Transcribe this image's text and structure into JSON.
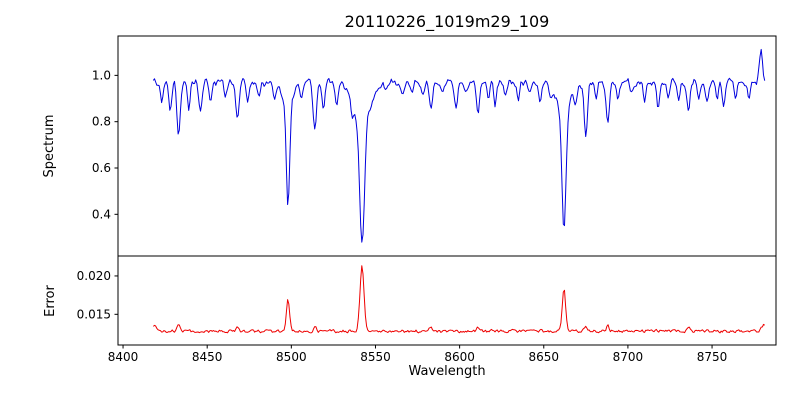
{
  "chart_data": {
    "type": "line",
    "title": "20110226_1019m29_109",
    "xlabel": "Wavelength",
    "xlim": [
      8397,
      8788
    ],
    "x_ticks": [
      8400,
      8450,
      8500,
      8550,
      8600,
      8650,
      8700,
      8750
    ],
    "x_start": 8418,
    "x_end": 8782,
    "x_step": 0.7,
    "grid": false,
    "legend": "none",
    "panels": [
      {
        "name": "spectrum",
        "ylabel": "Spectrum",
        "line_color": "#0000dd",
        "ylim": [
          0.22,
          1.17
        ],
        "y_ticks": [
          {
            "value": 0.4,
            "label": "0.4"
          },
          {
            "value": 0.6,
            "label": "0.6"
          },
          {
            "value": 0.8,
            "label": "0.8"
          },
          {
            "value": 1.0,
            "label": "1.0"
          }
        ],
        "continuum": 0.97,
        "noise_amplitude": 0.012,
        "absorption_lines": [
          {
            "center": 8498,
            "min_flux": 0.44,
            "width": 1.0,
            "wing_width": 3.2,
            "wing_fraction": 0.18
          },
          {
            "center": 8542,
            "min_flux": 0.27,
            "width": 1.4,
            "wing_width": 5.0,
            "wing_fraction": 0.25
          },
          {
            "center": 8662,
            "min_flux": 0.33,
            "width": 1.2,
            "wing_width": 4.0,
            "wing_fraction": 0.2
          },
          {
            "center": 8423,
            "min_flux": 0.88,
            "width": 0.8
          },
          {
            "center": 8428,
            "min_flux": 0.85,
            "width": 0.8
          },
          {
            "center": 8433,
            "min_flux": 0.74,
            "width": 1.0
          },
          {
            "center": 8439,
            "min_flux": 0.86,
            "width": 0.8
          },
          {
            "center": 8446,
            "min_flux": 0.84,
            "width": 0.9
          },
          {
            "center": 8452,
            "min_flux": 0.88,
            "width": 0.8
          },
          {
            "center": 8461,
            "min_flux": 0.9,
            "width": 0.8
          },
          {
            "center": 8468,
            "min_flux": 0.82,
            "width": 1.0
          },
          {
            "center": 8474,
            "min_flux": 0.88,
            "width": 0.8
          },
          {
            "center": 8481,
            "min_flux": 0.9,
            "width": 0.8
          },
          {
            "center": 8490,
            "min_flux": 0.91,
            "width": 0.8
          },
          {
            "center": 8506,
            "min_flux": 0.92,
            "width": 0.8
          },
          {
            "center": 8514,
            "min_flux": 0.76,
            "width": 1.0
          },
          {
            "center": 8519,
            "min_flux": 0.85,
            "width": 0.8
          },
          {
            "center": 8527,
            "min_flux": 0.88,
            "width": 0.8
          },
          {
            "center": 8536,
            "min_flux": 0.91,
            "width": 0.8
          },
          {
            "center": 8556,
            "min_flux": 0.93,
            "width": 0.8
          },
          {
            "center": 8566,
            "min_flux": 0.92,
            "width": 0.8
          },
          {
            "center": 8572,
            "min_flux": 0.93,
            "width": 0.8
          },
          {
            "center": 8578,
            "min_flux": 0.92,
            "width": 0.8
          },
          {
            "center": 8583,
            "min_flux": 0.86,
            "width": 0.9
          },
          {
            "center": 8590,
            "min_flux": 0.93,
            "width": 0.8
          },
          {
            "center": 8598,
            "min_flux": 0.86,
            "width": 0.9
          },
          {
            "center": 8604,
            "min_flux": 0.92,
            "width": 0.8
          },
          {
            "center": 8611,
            "min_flux": 0.84,
            "width": 0.9
          },
          {
            "center": 8617,
            "min_flux": 0.9,
            "width": 0.8
          },
          {
            "center": 8621,
            "min_flux": 0.87,
            "width": 0.8
          },
          {
            "center": 8627,
            "min_flux": 0.91,
            "width": 0.8
          },
          {
            "center": 8635,
            "min_flux": 0.9,
            "width": 0.8
          },
          {
            "center": 8642,
            "min_flux": 0.92,
            "width": 0.8
          },
          {
            "center": 8648,
            "min_flux": 0.89,
            "width": 0.8
          },
          {
            "center": 8654,
            "min_flux": 0.93,
            "width": 0.8
          },
          {
            "center": 8669,
            "min_flux": 0.9,
            "width": 0.8
          },
          {
            "center": 8675,
            "min_flux": 0.74,
            "width": 1.0
          },
          {
            "center": 8681,
            "min_flux": 0.89,
            "width": 0.8
          },
          {
            "center": 8688,
            "min_flux": 0.79,
            "width": 1.0
          },
          {
            "center": 8694,
            "min_flux": 0.91,
            "width": 0.8
          },
          {
            "center": 8702,
            "min_flux": 0.92,
            "width": 0.8
          },
          {
            "center": 8710,
            "min_flux": 0.89,
            "width": 0.8
          },
          {
            "center": 8718,
            "min_flux": 0.87,
            "width": 0.8
          },
          {
            "center": 8724,
            "min_flux": 0.91,
            "width": 0.8
          },
          {
            "center": 8730,
            "min_flux": 0.89,
            "width": 0.8
          },
          {
            "center": 8736,
            "min_flux": 0.85,
            "width": 0.9
          },
          {
            "center": 8742,
            "min_flux": 0.91,
            "width": 0.8
          },
          {
            "center": 8747,
            "min_flux": 0.88,
            "width": 0.8
          },
          {
            "center": 8753,
            "min_flux": 0.91,
            "width": 0.8
          },
          {
            "center": 8757,
            "min_flux": 0.87,
            "width": 0.8
          },
          {
            "center": 8764,
            "min_flux": 0.9,
            "width": 0.8
          },
          {
            "center": 8772,
            "min_flux": 0.89,
            "width": 0.8
          }
        ],
        "emission_spikes": [
          {
            "center": 8779,
            "peak_flux": 1.1,
            "width": 1.0
          }
        ]
      },
      {
        "name": "error",
        "ylabel": "Error",
        "line_color": "#ee0000",
        "ylim": [
          0.011,
          0.0226
        ],
        "y_ticks": [
          {
            "value": 0.015,
            "label": "0.015"
          },
          {
            "value": 0.02,
            "label": "0.020"
          }
        ],
        "baseline": 0.0128,
        "noise_amplitude": 0.00025,
        "spikes": [
          {
            "center": 8498,
            "peak": 0.017,
            "width": 0.9
          },
          {
            "center": 8542,
            "peak": 0.0214,
            "width": 1.2
          },
          {
            "center": 8662,
            "peak": 0.0183,
            "width": 1.0
          },
          {
            "center": 8419,
            "peak": 0.0134,
            "width": 1.5
          },
          {
            "center": 8433,
            "peak": 0.0136,
            "width": 0.8
          },
          {
            "center": 8468,
            "peak": 0.0133,
            "width": 0.8
          },
          {
            "center": 8514,
            "peak": 0.0135,
            "width": 0.8
          },
          {
            "center": 8583,
            "peak": 0.0134,
            "width": 0.8
          },
          {
            "center": 8611,
            "peak": 0.0134,
            "width": 0.8
          },
          {
            "center": 8675,
            "peak": 0.0136,
            "width": 0.8
          },
          {
            "center": 8688,
            "peak": 0.0137,
            "width": 0.8
          },
          {
            "center": 8736,
            "peak": 0.0134,
            "width": 0.8
          },
          {
            "center": 8781,
            "peak": 0.0136,
            "width": 1.5
          }
        ]
      }
    ]
  }
}
